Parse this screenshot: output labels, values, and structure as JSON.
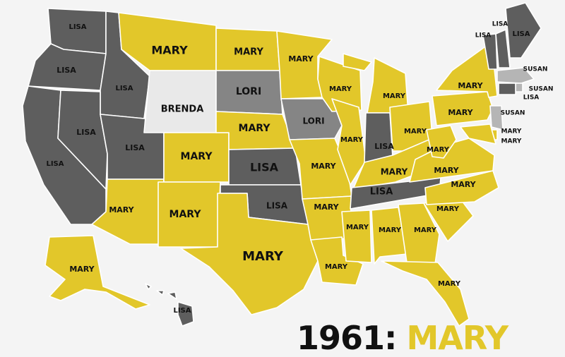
{
  "legend_colors": {
    "MARY": "#e2c72a",
    "LISA": "#5e5e5e",
    "LORI": "#858585",
    "SUSAN": "#b5b5b5",
    "BRENDA": "#e9e9e9"
  },
  "headline": {
    "year": "1961:",
    "name": "MARY"
  },
  "states": [
    {
      "code": "WA",
      "name": "LISA"
    },
    {
      "code": "OR",
      "name": "LISA"
    },
    {
      "code": "CA",
      "name": "LISA"
    },
    {
      "code": "ID",
      "name": "LISA"
    },
    {
      "code": "NV",
      "name": "LISA"
    },
    {
      "code": "UT",
      "name": "LISA"
    },
    {
      "code": "AZ",
      "name": "MARY"
    },
    {
      "code": "MT",
      "name": "MARY"
    },
    {
      "code": "WY",
      "name": "BRENDA"
    },
    {
      "code": "CO",
      "name": "MARY"
    },
    {
      "code": "NM",
      "name": "MARY"
    },
    {
      "code": "ND",
      "name": "MARY"
    },
    {
      "code": "SD",
      "name": "LORI"
    },
    {
      "code": "NE",
      "name": "MARY"
    },
    {
      "code": "KS",
      "name": "LISA"
    },
    {
      "code": "OK",
      "name": "LISA"
    },
    {
      "code": "TX",
      "name": "MARY"
    },
    {
      "code": "MN",
      "name": "MARY"
    },
    {
      "code": "IA",
      "name": "LORI"
    },
    {
      "code": "MO",
      "name": "MARY"
    },
    {
      "code": "AR",
      "name": "MARY"
    },
    {
      "code": "LA",
      "name": "MARY"
    },
    {
      "code": "WI",
      "name": "MARY"
    },
    {
      "code": "IL",
      "name": "MARY"
    },
    {
      "code": "MI",
      "name": "MARY"
    },
    {
      "code": "IN",
      "name": "LISA"
    },
    {
      "code": "OH",
      "name": "MARY"
    },
    {
      "code": "KY",
      "name": "MARY"
    },
    {
      "code": "TN",
      "name": "LISA"
    },
    {
      "code": "MS",
      "name": "MARY"
    },
    {
      "code": "AL",
      "name": "MARY"
    },
    {
      "code": "GA",
      "name": "MARY"
    },
    {
      "code": "FL",
      "name": "MARY"
    },
    {
      "code": "SC",
      "name": "MARY"
    },
    {
      "code": "NC",
      "name": "MARY"
    },
    {
      "code": "VA",
      "name": "MARY"
    },
    {
      "code": "WV",
      "name": "MARY"
    },
    {
      "code": "PA",
      "name": "MARY"
    },
    {
      "code": "NY",
      "name": "MARY"
    },
    {
      "code": "NJ",
      "name": "SUSAN"
    },
    {
      "code": "DE",
      "name": "MARY"
    },
    {
      "code": "MD",
      "name": "MARY"
    },
    {
      "code": "VT",
      "name": "LISA"
    },
    {
      "code": "NH",
      "name": "LISA"
    },
    {
      "code": "ME",
      "name": "LISA"
    },
    {
      "code": "MA",
      "name": "SUSAN"
    },
    {
      "code": "RI",
      "name": "SUSAN"
    },
    {
      "code": "CT",
      "name": "LISA"
    },
    {
      "code": "AK",
      "name": "MARY"
    },
    {
      "code": "HI",
      "name": "LISA"
    }
  ]
}
